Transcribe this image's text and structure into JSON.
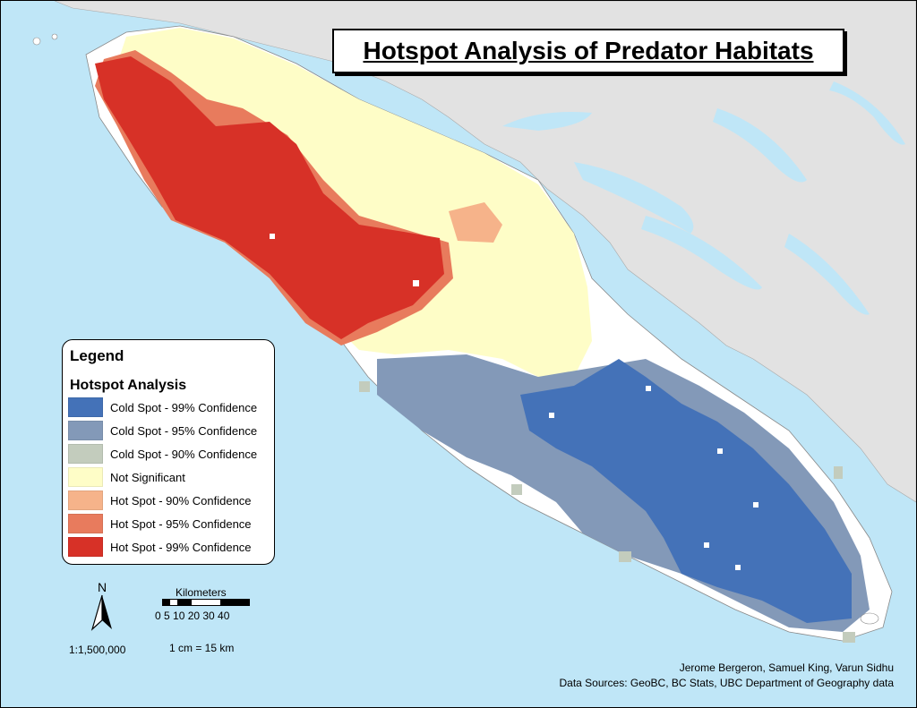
{
  "title": "Hotspot Analysis of Predator Habitats",
  "legend": {
    "title": "Legend",
    "subtitle": "Hotspot Analysis",
    "items": [
      {
        "label": "Cold Spot - 99% Confidence",
        "color": "#4472b8"
      },
      {
        "label": "Cold Spot - 95% Confidence",
        "color": "#8399b8"
      },
      {
        "label": "Cold Spot - 90% Confidence",
        "color": "#c3ccbd"
      },
      {
        "label": "Not Significant",
        "color": "#fefdc7"
      },
      {
        "label": "Hot Spot - 90% Confidence",
        "color": "#f6b38a"
      },
      {
        "label": "Hot Spot - 95% Confidence",
        "color": "#e87b5d"
      },
      {
        "label": "Hot Spot - 99% Confidence",
        "color": "#d73127"
      }
    ]
  },
  "north_label": "N",
  "scale": {
    "ratio": "1:1,500,000",
    "unit_label": "Kilometers",
    "ticks": "0 5 10 20 30 40",
    "cm_label": "1 cm = 15 km"
  },
  "credits": {
    "authors": "Jerome Bergeron, Samuel King, Varun Sidhu",
    "sources": "Data Sources: GeoBC, BC Stats, UBC Department of Geography data"
  },
  "colors": {
    "ocean": "#bfe6f7",
    "land": "#e2e2e2",
    "island_base": "#ffffff"
  }
}
